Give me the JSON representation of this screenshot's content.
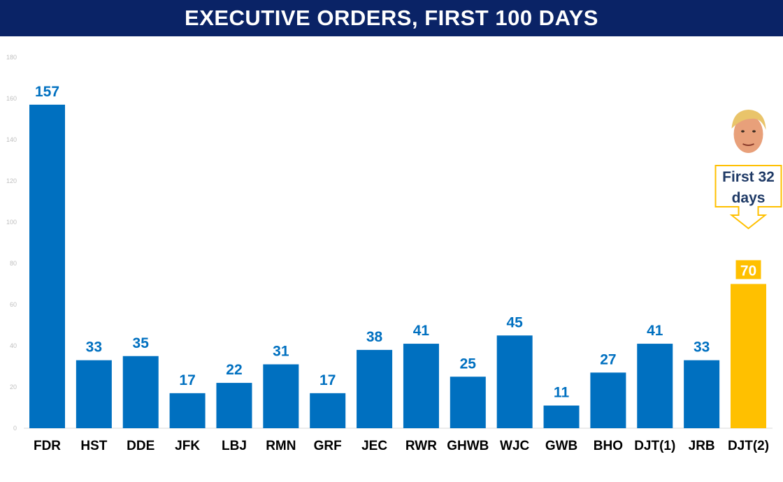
{
  "title": "EXECUTIVE ORDERS, FIRST 100 DAYS",
  "chart_data": {
    "type": "bar",
    "title": "EXECUTIVE ORDERS, FIRST 100 DAYS",
    "xlabel": "",
    "ylabel": "",
    "categories": [
      "FDR",
      "HST",
      "DDE",
      "JFK",
      "LBJ",
      "RMN",
      "GRF",
      "JEC",
      "RWR",
      "GHWB",
      "WJC",
      "GWB",
      "BHO",
      "DJT(1)",
      "JRB",
      "DJT(2)"
    ],
    "values": [
      157,
      33,
      35,
      17,
      22,
      31,
      17,
      38,
      41,
      25,
      45,
      11,
      27,
      41,
      33,
      70
    ],
    "ylim": [
      0,
      180
    ],
    "yticks": [
      0,
      20,
      40,
      60,
      80,
      100,
      120,
      140,
      160,
      180
    ],
    "grid": false,
    "legend": "none",
    "highlight_index": 15,
    "colors": {
      "bar": "#0070c0",
      "highlight": "#ffc000",
      "label": "#0070c0",
      "highlight_label_text": "#ffffff",
      "axis_text": "#bfbfbf",
      "title_bar": "#0a2366"
    },
    "annotation": {
      "lines": [
        "First 32",
        "days"
      ],
      "target": "DJT(2)",
      "border_color": "#ffc000"
    }
  },
  "portrait": {
    "subject": "face-portrait"
  }
}
